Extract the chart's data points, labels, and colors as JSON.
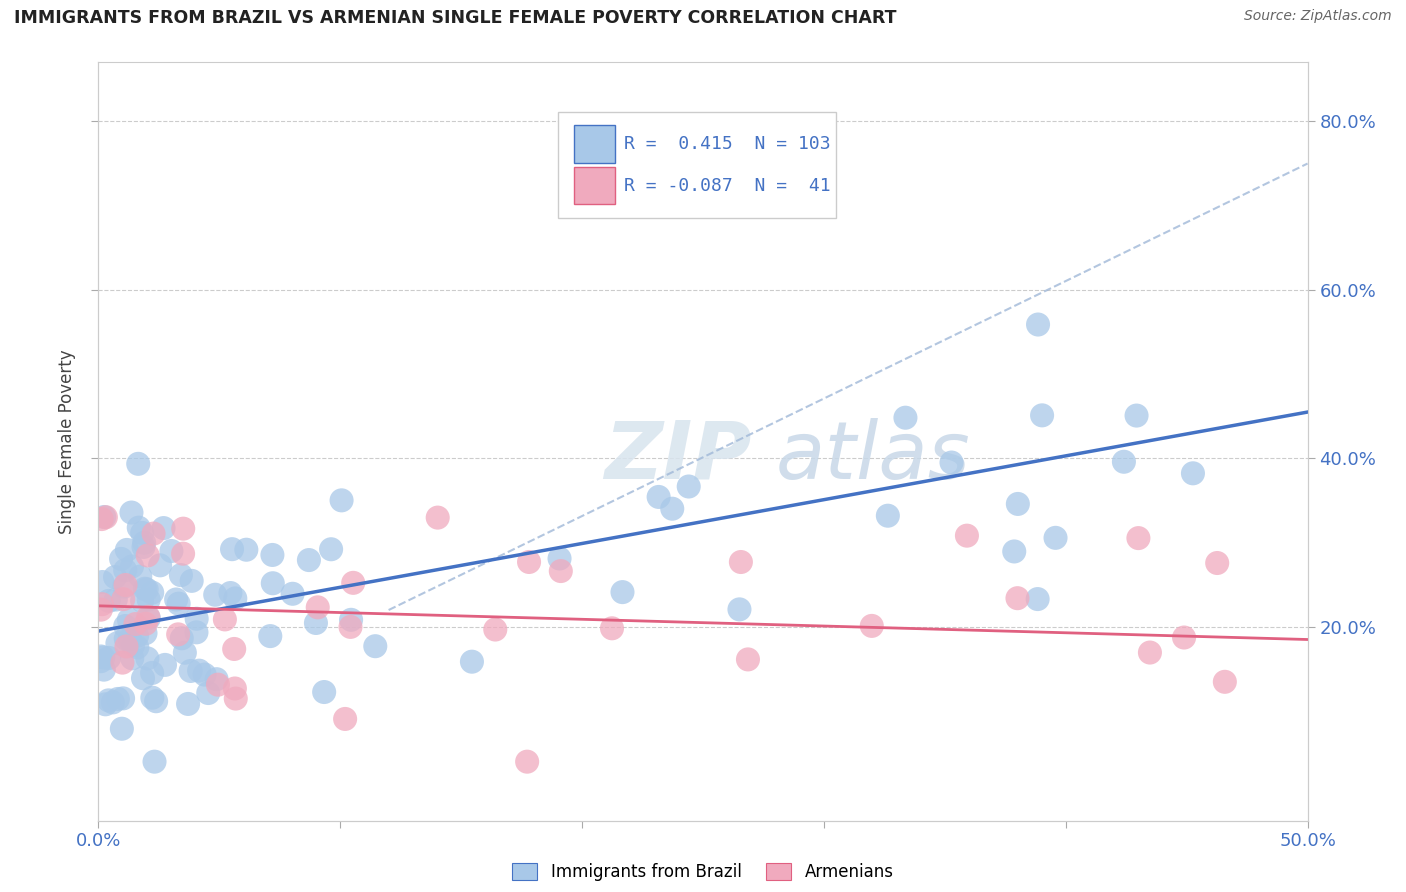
{
  "title": "IMMIGRANTS FROM BRAZIL VS ARMENIAN SINGLE FEMALE POVERTY CORRELATION CHART",
  "source": "Source: ZipAtlas.com",
  "ylabel": "Single Female Poverty",
  "ytick_labels_right": [
    "20.0%",
    "40.0%",
    "60.0%",
    "80.0%"
  ],
  "ytick_values": [
    0.2,
    0.4,
    0.6,
    0.8
  ],
  "xlim": [
    0.0,
    0.5
  ],
  "ylim": [
    -0.03,
    0.87
  ],
  "legend_r1_val": "0.415",
  "legend_r1_n": "103",
  "legend_r2_val": "-0.087",
  "legend_r2_n": "41",
  "color_brazil": "#A8C8E8",
  "color_armenian": "#F0AABE",
  "color_line_brazil": "#4472C4",
  "color_line_armenian": "#E06080",
  "color_dashed": "#A0B8D8",
  "brazil_R": 0.415,
  "armenian_R": -0.087,
  "brazil_N": 103,
  "armenian_N": 41,
  "brazil_line_x0": 0.0,
  "brazil_line_y0": 0.195,
  "brazil_line_x1": 0.5,
  "brazil_line_y1": 0.455,
  "armenian_line_x0": 0.0,
  "armenian_line_y0": 0.225,
  "armenian_line_x1": 0.5,
  "armenian_line_y1": 0.185,
  "dashed_line_x0": 0.12,
  "dashed_line_y0": 0.22,
  "dashed_line_x1": 0.5,
  "dashed_line_y1": 0.75,
  "watermark_text": "ZIPatlas",
  "legend_label_brazil": "Immigrants from Brazil",
  "legend_label_armenian": "Armenians"
}
